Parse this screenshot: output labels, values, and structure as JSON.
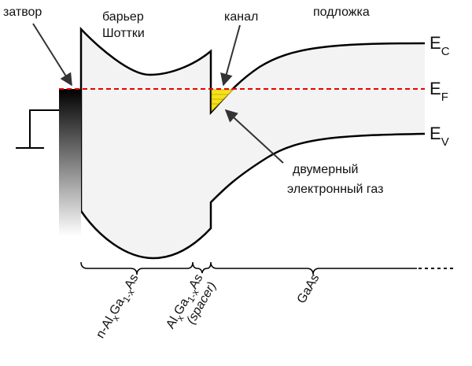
{
  "labels": {
    "gate": "затвор",
    "barrier": [
      "барьер",
      "Шоттки"
    ],
    "channel": "канал",
    "substrate": "подложка",
    "gas": [
      "двумерный",
      "электронный газ"
    ]
  },
  "levels": [
    {
      "main": "E",
      "sub": "C"
    },
    {
      "main": "E",
      "sub": "F"
    },
    {
      "main": "E",
      "sub": "V"
    }
  ],
  "layers": [
    {
      "parts": [
        {
          "text": "n-Al"
        },
        {
          "sub": "x"
        },
        {
          "text": "Ga"
        },
        {
          "sub": "1-x"
        },
        {
          "text": "As"
        }
      ]
    },
    {
      "parts": [
        {
          "text": "Al"
        },
        {
          "sub": "x"
        },
        {
          "text": "Ga"
        },
        {
          "sub": "1-x"
        },
        {
          "text": "As"
        }
      ],
      "note": "(spacer)"
    },
    {
      "parts": [
        {
          "text": "GaAs"
        }
      ]
    }
  ]
}
